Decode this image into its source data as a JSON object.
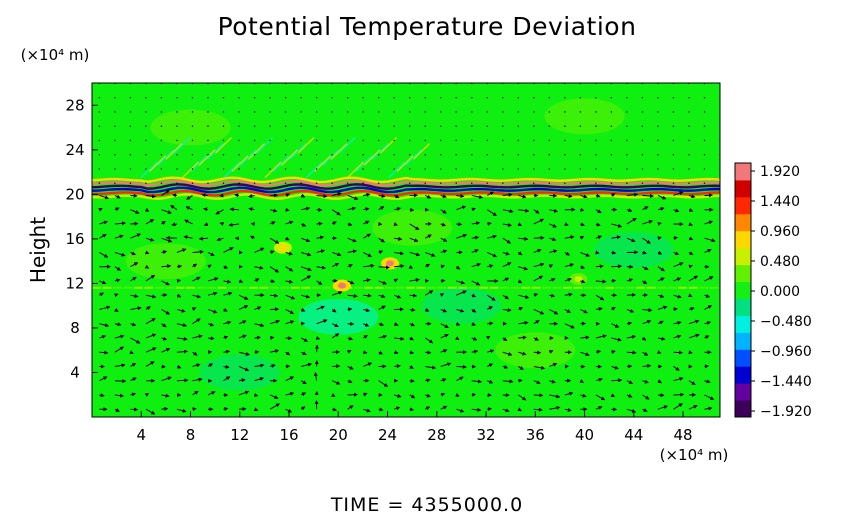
{
  "title": "Potential Temperature Deviation",
  "time_label": "TIME  =  4355000.0",
  "chart_data": {
    "type": "heatmap",
    "title": "Potential Temperature Deviation",
    "ylabel": "Height",
    "xlabel": "",
    "x_unit_label": "(×10⁴ m)",
    "y_unit_label": "(×10⁴ m)",
    "xlim": [
      0,
      51
    ],
    "ylim": [
      0,
      30
    ],
    "x_ticks": [
      4,
      8,
      12,
      16,
      20,
      24,
      28,
      32,
      36,
      40,
      44,
      48
    ],
    "y_ticks": [
      4,
      8,
      12,
      16,
      20,
      24,
      28
    ],
    "colorbar": {
      "ticks": [
        "1.920",
        "1.440",
        "0.960",
        "0.480",
        "0.000",
        "−0.480",
        "−0.960",
        "−1.440",
        "−1.920"
      ],
      "range": [
        -2.16,
        2.16
      ]
    },
    "background_value": 0.0,
    "features": [
      {
        "type": "tropopause_band",
        "y_center": 20.5,
        "x_start": 0,
        "x_end": 51
      },
      {
        "type": "wave_region",
        "x_start": 4,
        "x_end": 26,
        "y_start": 20,
        "y_end": 24
      },
      {
        "type": "anomaly",
        "x": 24.2,
        "y": 13.8,
        "value": 1.9
      },
      {
        "type": "anomaly",
        "x": 20.3,
        "y": 11.8,
        "value": 1.9
      },
      {
        "type": "anomaly",
        "x": 15.5,
        "y": 15.2,
        "value": 0.9
      },
      {
        "type": "anomaly",
        "x": 39.5,
        "y": 12.4,
        "value": 0.7
      }
    ],
    "vector_field": {
      "description": "wind vectors below ~20 km",
      "x_spacing": 1.26,
      "y_spacing": 1.28
    }
  },
  "colors": {
    "background_field": "#10f010",
    "colormap": [
      "#3c005a",
      "#6400a0",
      "#0000d0",
      "#0050ff",
      "#00b4ff",
      "#00f0e0",
      "#00e080",
      "#14f014",
      "#60f000",
      "#c8f000",
      "#ffd800",
      "#ff8800",
      "#ff2800",
      "#d00000",
      "#f07878"
    ]
  }
}
